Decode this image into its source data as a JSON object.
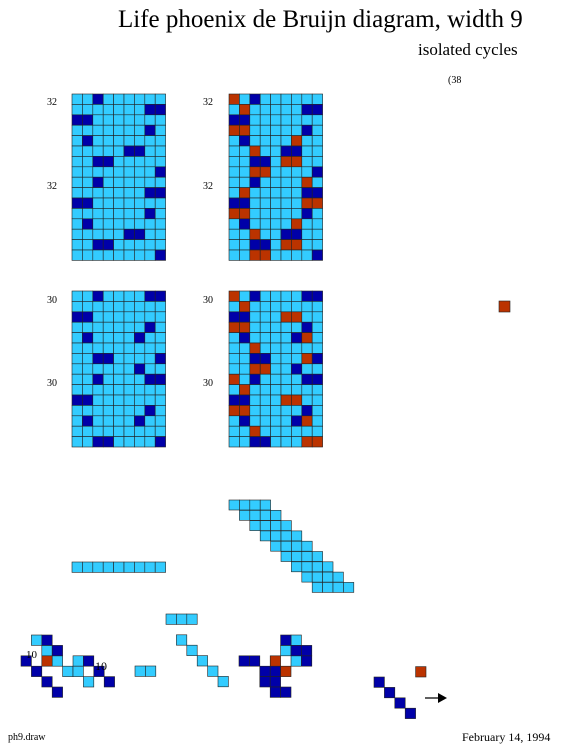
{
  "title": "Life phoenix de Bruijn diagram, width 9",
  "subtitle": "isolated cycles",
  "stray_mark": "(38",
  "panel_labels": {
    "r1_left_top": "32",
    "r1_left_mid": "32",
    "r1_right_top": "32",
    "r1_right_mid": "32",
    "r2_left_top": "30",
    "r2_left_mid": "30",
    "r2_right_top": "30",
    "r2_right_mid": "30"
  },
  "bottom_labels": {
    "left": "10",
    "mid": "10"
  },
  "footer": {
    "file": "ph9.draw",
    "date": "February 14, 1994"
  },
  "colors": {
    "light_cell": "#33ccff",
    "dark_cell": "#0000a8",
    "orange_cell": "#bb3300",
    "grid_line": "#222222"
  },
  "grids": {
    "p1_left": {
      "rows": 16,
      "cols": 9,
      "dark": [
        [
          0,
          2
        ],
        [
          1,
          7
        ],
        [
          1,
          8
        ],
        [
          2,
          0
        ],
        [
          2,
          1
        ],
        [
          3,
          7
        ],
        [
          4,
          1
        ],
        [
          5,
          5
        ],
        [
          5,
          6
        ],
        [
          6,
          2
        ],
        [
          6,
          3
        ],
        [
          7,
          8
        ],
        [
          8,
          2
        ],
        [
          9,
          7
        ],
        [
          9,
          8
        ],
        [
          10,
          0
        ],
        [
          10,
          1
        ],
        [
          11,
          7
        ],
        [
          12,
          1
        ],
        [
          13,
          5
        ],
        [
          13,
          6
        ],
        [
          14,
          2
        ],
        [
          14,
          3
        ],
        [
          15,
          8
        ]
      ],
      "orange": []
    },
    "p1_right": {
      "rows": 16,
      "cols": 9,
      "dark": [
        [
          0,
          2
        ],
        [
          1,
          7
        ],
        [
          1,
          8
        ],
        [
          2,
          0
        ],
        [
          2,
          1
        ],
        [
          3,
          7
        ],
        [
          4,
          1
        ],
        [
          5,
          5
        ],
        [
          5,
          6
        ],
        [
          6,
          2
        ],
        [
          6,
          3
        ],
        [
          7,
          8
        ],
        [
          8,
          2
        ],
        [
          9,
          7
        ],
        [
          9,
          8
        ],
        [
          10,
          0
        ],
        [
          10,
          1
        ],
        [
          11,
          7
        ],
        [
          12,
          1
        ],
        [
          13,
          5
        ],
        [
          13,
          6
        ],
        [
          14,
          2
        ],
        [
          14,
          3
        ],
        [
          15,
          8
        ]
      ],
      "orange": [
        [
          0,
          0
        ],
        [
          1,
          1
        ],
        [
          3,
          0
        ],
        [
          3,
          1
        ],
        [
          4,
          6
        ],
        [
          5,
          2
        ],
        [
          6,
          5
        ],
        [
          6,
          6
        ],
        [
          7,
          2
        ],
        [
          7,
          3
        ],
        [
          8,
          7
        ],
        [
          9,
          1
        ],
        [
          10,
          7
        ],
        [
          10,
          8
        ],
        [
          11,
          0
        ],
        [
          11,
          1
        ],
        [
          12,
          6
        ],
        [
          13,
          2
        ],
        [
          14,
          5
        ],
        [
          14,
          6
        ],
        [
          15,
          2
        ],
        [
          15,
          3
        ]
      ]
    },
    "p2_left": {
      "rows": 15,
      "cols": 9,
      "dark": [
        [
          0,
          2
        ],
        [
          0,
          7
        ],
        [
          0,
          8
        ],
        [
          2,
          0
        ],
        [
          2,
          1
        ],
        [
          3,
          7
        ],
        [
          4,
          1
        ],
        [
          4,
          6
        ],
        [
          6,
          2
        ],
        [
          6,
          3
        ],
        [
          6,
          8
        ],
        [
          7,
          6
        ],
        [
          8,
          2
        ],
        [
          8,
          7
        ],
        [
          8,
          8
        ],
        [
          10,
          0
        ],
        [
          10,
          1
        ],
        [
          11,
          7
        ],
        [
          12,
          1
        ],
        [
          12,
          6
        ],
        [
          14,
          2
        ],
        [
          14,
          3
        ],
        [
          14,
          8
        ]
      ],
      "orange": []
    },
    "p2_right": {
      "rows": 15,
      "cols": 9,
      "dark": [
        [
          0,
          2
        ],
        [
          0,
          7
        ],
        [
          0,
          8
        ],
        [
          2,
          0
        ],
        [
          2,
          1
        ],
        [
          3,
          7
        ],
        [
          4,
          1
        ],
        [
          4,
          6
        ],
        [
          6,
          2
        ],
        [
          6,
          3
        ],
        [
          6,
          8
        ],
        [
          7,
          6
        ],
        [
          8,
          2
        ],
        [
          8,
          7
        ],
        [
          8,
          8
        ],
        [
          10,
          0
        ],
        [
          10,
          1
        ],
        [
          11,
          7
        ],
        [
          12,
          1
        ],
        [
          12,
          6
        ],
        [
          14,
          2
        ],
        [
          14,
          3
        ],
        [
          14,
          8
        ]
      ],
      "orange": [
        [
          0,
          0
        ],
        [
          1,
          1
        ],
        [
          2,
          5
        ],
        [
          2,
          6
        ],
        [
          3,
          0
        ],
        [
          3,
          1
        ],
        [
          4,
          7
        ],
        [
          5,
          2
        ],
        [
          6,
          7
        ],
        [
          7,
          2
        ],
        [
          7,
          3
        ],
        [
          8,
          0
        ],
        [
          9,
          1
        ],
        [
          10,
          5
        ],
        [
          10,
          6
        ],
        [
          11,
          0
        ],
        [
          11,
          1
        ],
        [
          12,
          7
        ],
        [
          13,
          2
        ],
        [
          14,
          7
        ],
        [
          14,
          8
        ]
      ]
    }
  },
  "isolated_orange": [
    [
      499,
      301
    ]
  ],
  "strips": {
    "horizontal_bar": {
      "cells": 9
    },
    "staircase": {
      "rows": 9
    }
  },
  "fragments": {
    "f1": {
      "dark": [
        [
          0,
          2
        ],
        [
          1,
          3
        ],
        [
          2,
          0
        ],
        [
          3,
          1
        ],
        [
          4,
          2
        ],
        [
          5,
          3
        ],
        [
          2,
          6
        ],
        [
          3,
          7
        ],
        [
          4,
          8
        ]
      ],
      "light": [
        [
          0,
          1
        ],
        [
          1,
          2
        ],
        [
          2,
          3
        ],
        [
          3,
          4
        ],
        [
          2,
          5
        ],
        [
          3,
          5
        ],
        [
          4,
          6
        ]
      ],
      "orange": [
        [
          2,
          2
        ]
      ]
    },
    "f2": {
      "light": [
        [
          0,
          0
        ],
        [
          0,
          1
        ]
      ]
    },
    "f3": {
      "light": [
        [
          0,
          0
        ],
        [
          0,
          1
        ],
        [
          0,
          2
        ],
        [
          2,
          1
        ],
        [
          3,
          2
        ],
        [
          4,
          3
        ],
        [
          5,
          4
        ],
        [
          6,
          5
        ]
      ]
    },
    "f4": {
      "dark": [
        [
          0,
          4
        ],
        [
          1,
          5
        ],
        [
          2,
          0
        ],
        [
          2,
          1
        ],
        [
          3,
          2
        ],
        [
          3,
          3
        ],
        [
          4,
          2
        ],
        [
          4,
          3
        ],
        [
          5,
          3
        ],
        [
          5,
          4
        ],
        [
          2,
          6
        ],
        [
          1,
          6
        ]
      ],
      "light": [
        [
          0,
          5
        ],
        [
          1,
          4
        ],
        [
          2,
          5
        ]
      ],
      "orange": [
        [
          2,
          3
        ],
        [
          3,
          4
        ]
      ]
    },
    "f5": {
      "dark": [
        [
          0,
          0
        ],
        [
          1,
          1
        ],
        [
          2,
          2
        ],
        [
          3,
          3
        ]
      ],
      "orange": [
        [
          -1,
          4
        ]
      ]
    }
  },
  "arrow": "arrow-right-icon"
}
